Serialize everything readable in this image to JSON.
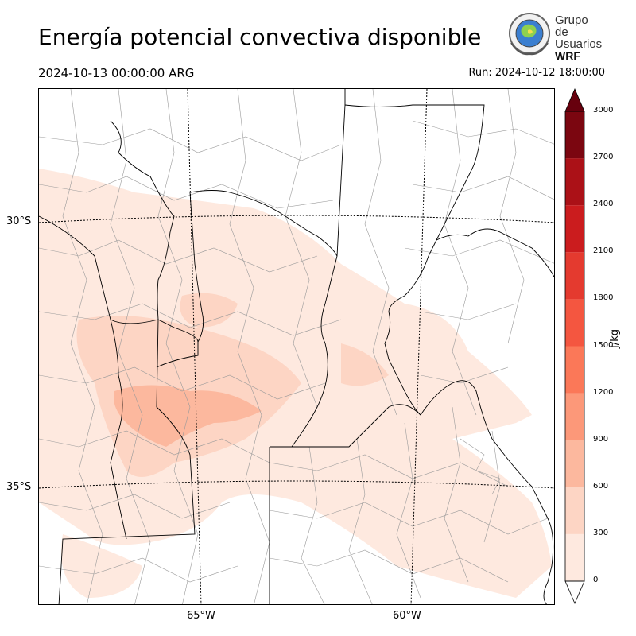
{
  "header": {
    "title": "Energía potencial convectiva disponible",
    "valid_time": "2024-10-13 00:00:00 ARG",
    "run_time": "Run: 2024-10-12 18:00:00"
  },
  "logo": {
    "line1": "Grupo de",
    "line2": "Usuarios",
    "line3": "WRF"
  },
  "map": {
    "lat_labels": [
      {
        "label": "30°S",
        "value": -30
      },
      {
        "label": "35°S",
        "value": -35
      }
    ],
    "lon_labels": [
      {
        "label": "65°W",
        "value": -65
      },
      {
        "label": "60°W",
        "value": -60
      }
    ]
  },
  "colorbar": {
    "unit": "J/kg",
    "ticks": [
      "0",
      "300",
      "600",
      "900",
      "1200",
      "1500",
      "1800",
      "2100",
      "2400",
      "2700",
      "3000"
    ],
    "colors": [
      "#fee9df",
      "#fdd5c4",
      "#fcb89e",
      "#fc9879",
      "#fb7858",
      "#f45640",
      "#e43a2f",
      "#cb1c1e",
      "#ab1117",
      "#7b0610"
    ],
    "extend_over_color": "#67000d"
  }
}
